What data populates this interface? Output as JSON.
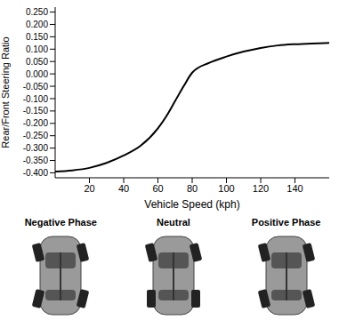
{
  "chart_data": {
    "type": "line",
    "x_label": "Vehicle Speed (kph)",
    "y_label": "Rear/Front Steering Ratio",
    "x": [
      0,
      10,
      20,
      30,
      40,
      50,
      60,
      65,
      70,
      75,
      80,
      90,
      100,
      110,
      120,
      130,
      140,
      150,
      160
    ],
    "values": [
      -0.395,
      -0.39,
      -0.38,
      -0.36,
      -0.33,
      -0.29,
      -0.22,
      -0.17,
      -0.11,
      -0.05,
      0.005,
      0.045,
      0.07,
      0.09,
      0.105,
      0.115,
      0.12,
      0.123,
      0.125
    ],
    "color": "#000000",
    "xlim": [
      0,
      160
    ],
    "xticks": [
      20,
      40,
      60,
      80,
      100,
      120,
      140
    ],
    "ylim": [
      -0.42,
      0.27
    ],
    "yticks": [
      {
        "value": 0.25,
        "label": "0.250"
      },
      {
        "value": 0.2,
        "label": "0.200"
      },
      {
        "value": 0.15,
        "label": "0.150"
      },
      {
        "value": 0.1,
        "label": "0.100"
      },
      {
        "value": 0.05,
        "label": "0.050"
      },
      {
        "value": 0,
        "label": "0.000"
      },
      {
        "value": -0.05,
        "label": "-0.050"
      },
      {
        "value": -0.1,
        "label": "-0.100"
      },
      {
        "value": -0.15,
        "label": "-0.150"
      },
      {
        "value": -0.2,
        "label": "-0.200"
      },
      {
        "value": -0.25,
        "label": "-0.250"
      },
      {
        "value": -0.3,
        "label": "-0.300"
      },
      {
        "value": -0.35,
        "label": "-0.350"
      },
      {
        "value": -0.4,
        "label": "-0.400"
      }
    ],
    "grid": false,
    "annotations": [
      "Negative Phase",
      "Neutral",
      "Positive Phase"
    ]
  }
}
